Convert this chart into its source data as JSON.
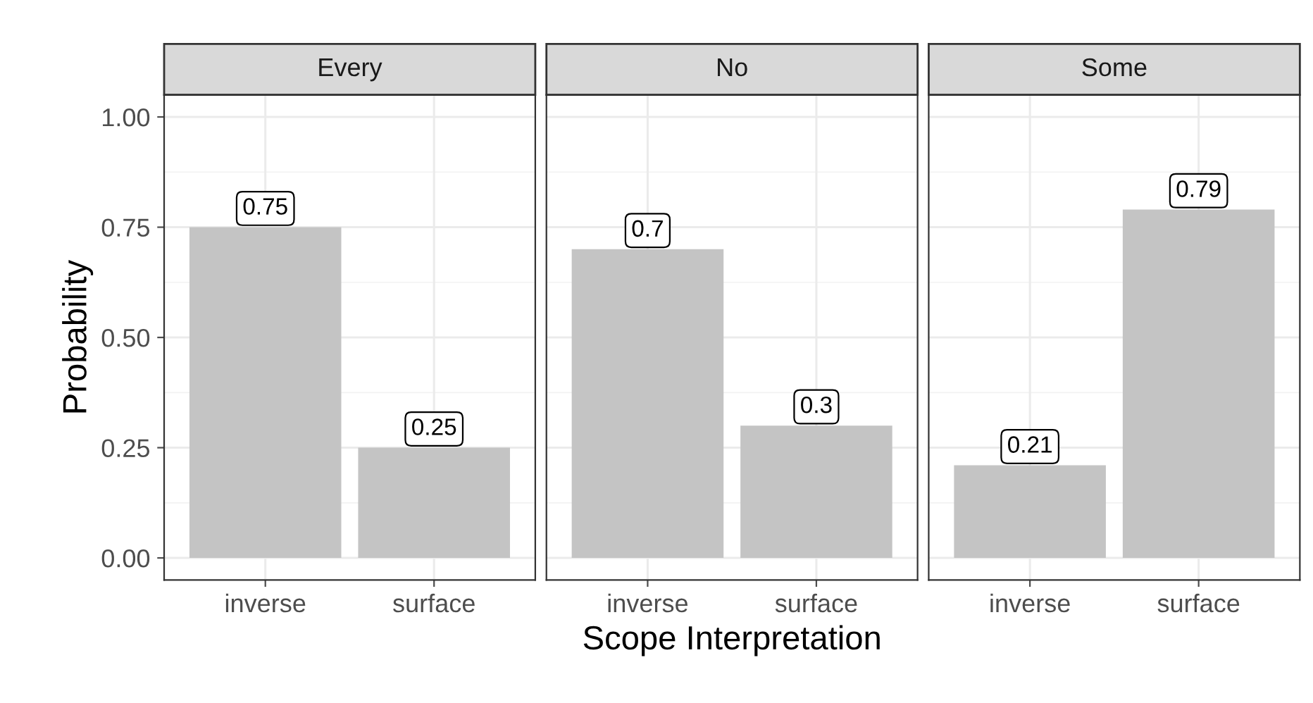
{
  "chart_data": [
    {
      "type": "bar",
      "title": "Every",
      "ylabel": "Probability",
      "categories": [
        "inverse",
        "surface"
      ],
      "values": [
        0.75,
        0.25
      ],
      "color": "#c4c4c4",
      "ylim": [
        -0.05,
        1.05
      ],
      "yticks": [
        {
          "value": 0,
          "label": "0.00"
        },
        {
          "value": 0.25,
          "label": "0.25"
        },
        {
          "value": 0.5,
          "label": "0.50"
        },
        {
          "value": 0.75,
          "label": "0.75"
        },
        {
          "value": 1,
          "label": "1.00"
        }
      ],
      "grid": true,
      "data_labels": true
    },
    {
      "type": "bar",
      "title": "No",
      "xlabel": "Scope Interpretation",
      "categories": [
        "inverse",
        "surface"
      ],
      "values": [
        0.7,
        0.3
      ],
      "color": "#c4c4c4",
      "ylim": [
        -0.05,
        1.05
      ],
      "yticks": [
        0,
        0.25,
        0.5,
        0.75,
        1
      ],
      "grid": true,
      "data_labels": true,
      "tick_labels": "x"
    },
    {
      "type": "bar",
      "title": "Some",
      "categories": [
        "inverse",
        "surface"
      ],
      "values": [
        0.21,
        0.79
      ],
      "color": "#c4c4c4",
      "ylim": [
        -0.05,
        1.05
      ],
      "yticks": [
        0,
        0.25,
        0.5,
        0.75,
        1
      ],
      "grid": true,
      "data_labels": true,
      "tick_labels": "x"
    }
  ]
}
